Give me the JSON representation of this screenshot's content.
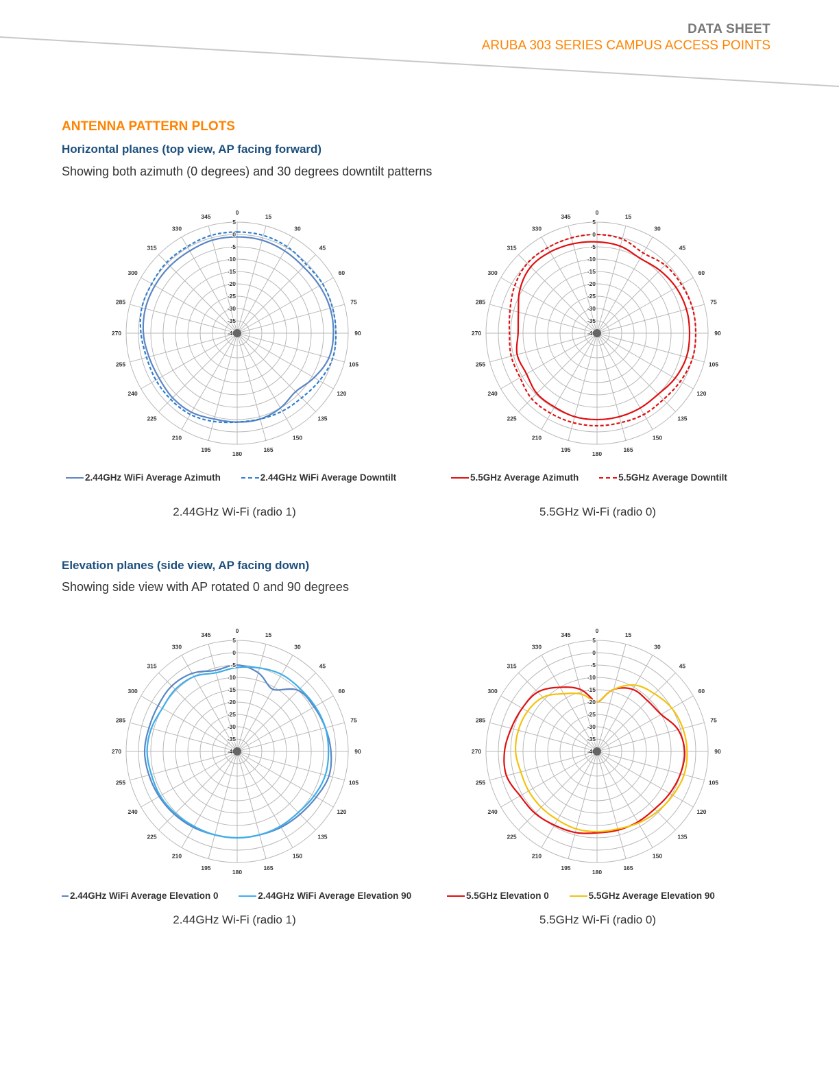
{
  "header": {
    "doc_type": "DATA SHEET",
    "product": "ARUBA 303 SERIES CAMPUS ACCESS POINTS"
  },
  "section_title": "ANTENNA PATTERN PLOTS",
  "horizontal": {
    "title": "Horizontal planes (top view, AP facing forward)",
    "description": "Showing both azimuth (0 degrees) and 30 degrees downtilt patterns"
  },
  "elevation": {
    "title": "Elevation planes (side view, AP facing down)",
    "description": "Showing side view with AP rotated 0 and 90 degrees"
  },
  "captions": {
    "h24": "2.44GHz Wi-Fi (radio 1)",
    "h55": "5.5GHz Wi-Fi (radio 0)",
    "e24": "2.44GHz Wi-Fi (radio 1)",
    "e55": "5.5GHz Wi-Fi (radio 0)"
  },
  "colors": {
    "orange": "#ff8300",
    "navy": "#1c4f7c",
    "blue_solid": "#5b86c4",
    "blue_dash": "#2f7fd0",
    "red": "#e01010",
    "light_blue": "#3daeea",
    "yellow": "#f4c20d",
    "grid": "#b8b8b8"
  },
  "chart_data": [
    {
      "type": "polar",
      "angle_ticks": [
        "0",
        "15",
        "30",
        "45",
        "60",
        "75",
        "90",
        "105",
        "120",
        "135",
        "150",
        "165",
        "180",
        "195",
        "210",
        "225",
        "240",
        "255",
        "270",
        "285",
        "300",
        "315",
        "330",
        "345"
      ],
      "radial_ticks": [
        "5",
        "0",
        "-5",
        "-10",
        "-15",
        "-20",
        "-25",
        "-30",
        "-35",
        "-40"
      ],
      "rlim": [
        -40,
        5
      ],
      "series": [
        {
          "name": "2.44GHz WiFi Average Azimuth",
          "color": "#5b86c4",
          "dash": false,
          "values": [
            -1,
            -1,
            -1.5,
            -2,
            -1.5,
            -1,
            -1,
            -1.5,
            -4,
            -6.5,
            -5,
            -4,
            -4,
            -4,
            -3,
            -3,
            -3.5,
            -3,
            -2,
            -1.5,
            -1.5,
            -1.5,
            -1.5,
            -1
          ]
        },
        {
          "name": "2.44GHz WiFi Average Downtilt",
          "color": "#2f7fd0",
          "dash": true,
          "values": [
            1,
            1,
            0.5,
            -0.5,
            0,
            0,
            0,
            0,
            -1.5,
            -3,
            -3.5,
            -4,
            -4,
            -3,
            -2,
            -2,
            -2,
            -2,
            -1,
            0,
            0,
            0.5,
            0.5,
            1
          ]
        }
      ]
    },
    {
      "type": "polar",
      "angle_ticks": [
        "0",
        "15",
        "30",
        "45",
        "60",
        "75",
        "90",
        "105",
        "120",
        "135",
        "150",
        "165",
        "180",
        "195",
        "210",
        "225",
        "240",
        "255",
        "270",
        "285",
        "300",
        "315",
        "330",
        "345"
      ],
      "radial_ticks": [
        "5",
        "0",
        "-5",
        "-10",
        "-15",
        "-20",
        "-25",
        "-30",
        "-35",
        "-40"
      ],
      "rlim": [
        -40,
        5
      ],
      "series": [
        {
          "name": "5.5GHz Average Azimuth",
          "color": "#e01010",
          "dash": false,
          "values": [
            -3,
            -3.5,
            -5,
            -4,
            -3,
            -2.5,
            -2.5,
            -2.5,
            -3.5,
            -5,
            -5,
            -5,
            -5,
            -5,
            -5.5,
            -5.5,
            -7,
            -6.5,
            -8,
            -7,
            -4,
            -2,
            -2,
            -2.5
          ]
        },
        {
          "name": "5.5GHz Average Downtilt",
          "color": "#e01010",
          "dash": true,
          "values": [
            0,
            -0.5,
            -2.5,
            -1,
            -0.5,
            0,
            0,
            0,
            -1,
            -2,
            -2,
            -2.5,
            -2.5,
            -2.5,
            -2.5,
            -2.5,
            -4,
            -4,
            -4.5,
            -3.5,
            -1.5,
            0,
            0,
            0
          ]
        }
      ]
    },
    {
      "type": "polar",
      "angle_ticks": [
        "0",
        "15",
        "30",
        "45",
        "60",
        "75",
        "90",
        "105",
        "120",
        "135",
        "150",
        "165",
        "180",
        "195",
        "210",
        "225",
        "240",
        "255",
        "270",
        "285",
        "300",
        "315",
        "330",
        "345"
      ],
      "radial_ticks": [
        "5",
        "0",
        "-5",
        "-10",
        "-15",
        "-20",
        "-25",
        "-30",
        "-35",
        "-40"
      ],
      "rlim": [
        -40,
        5
      ],
      "series": [
        {
          "name": "2.44GHz WiFi Average Elevation 0",
          "color": "#5b86c4",
          "dash": false,
          "values": [
            -5,
            -7,
            -11,
            -5,
            -4,
            -3,
            -2,
            -1.5,
            -3,
            -4,
            -4.5,
            -5,
            -5,
            -5,
            -4.5,
            -4,
            -3.5,
            -3,
            -2.5,
            -3,
            -3,
            -2.5,
            -3.5,
            -6
          ]
        },
        {
          "name": "2.44GHz WiFi Average Elevation 90",
          "color": "#3daeea",
          "dash": false,
          "values": [
            -6,
            -5,
            -4,
            -4,
            -3.5,
            -3,
            -3,
            -3,
            -4,
            -5,
            -5,
            -5,
            -5,
            -5,
            -5,
            -4.5,
            -4,
            -4,
            -3.5,
            -4,
            -5,
            -4.5,
            -5,
            -7
          ]
        }
      ]
    },
    {
      "type": "polar",
      "angle_ticks": [
        "0",
        "15",
        "30",
        "45",
        "60",
        "75",
        "90",
        "105",
        "120",
        "135",
        "150",
        "165",
        "180",
        "195",
        "210",
        "225",
        "240",
        "255",
        "270",
        "285",
        "300",
        "315",
        "330",
        "345"
      ],
      "radial_ticks": [
        "5",
        "0",
        "-5",
        "-10",
        "-15",
        "-20",
        "-25",
        "-30",
        "-35",
        "-40"
      ],
      "rlim": [
        -40,
        5
      ],
      "series": [
        {
          "name": "5.5GHz Elevation 0",
          "color": "#e01010",
          "dash": false,
          "values": [
            -20,
            -14,
            -11,
            -11,
            -10,
            -6,
            -4.5,
            -5,
            -6,
            -7,
            -7,
            -7,
            -7,
            -6,
            -5.5,
            -4.5,
            -4,
            -2,
            -2.5,
            -4,
            -5,
            -6,
            -10,
            -14
          ]
        },
        {
          "name": "5.5GHz Average Elevation 90",
          "color": "#f4c20d",
          "dash": false,
          "values": [
            -20,
            -14,
            -9,
            -7,
            -5,
            -4,
            -3.5,
            -3.5,
            -4.5,
            -5.5,
            -6.5,
            -7.5,
            -7.5,
            -7.5,
            -8,
            -8,
            -8,
            -8,
            -7,
            -7,
            -7.5,
            -9,
            -13,
            -16
          ]
        }
      ]
    }
  ]
}
